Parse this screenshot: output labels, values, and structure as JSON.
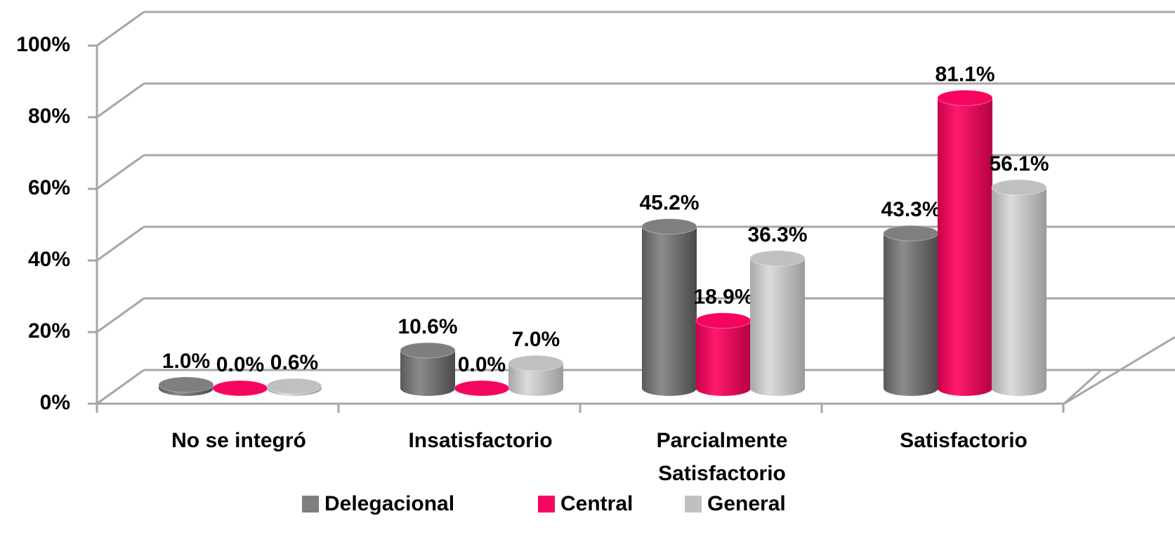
{
  "chart_data": {
    "type": "bar3d",
    "categories": [
      "No se integró",
      "Insatisfactorio",
      "Parcialmente Satisfactorio",
      "Satisfactorio"
    ],
    "series": [
      {
        "name": "Delegacional",
        "color": "#7f7f7f",
        "values": [
          1.0,
          10.6,
          45.2,
          43.3
        ],
        "value_labels": [
          "1.0%",
          "10.6%",
          "45.2%",
          "43.3%"
        ]
      },
      {
        "name": "Central",
        "color": "#f5055f",
        "values": [
          0.0,
          0.0,
          18.9,
          81.1
        ],
        "value_labels": [
          "0.0%",
          "0.0%",
          "18.9%",
          "81.1%"
        ]
      },
      {
        "name": "General",
        "color": "#c0c0c0",
        "values": [
          0.6,
          7.0,
          36.3,
          56.1
        ],
        "value_labels": [
          "0.6%",
          "7.0%",
          "36.3%",
          "56.1%"
        ]
      }
    ],
    "ylim": [
      0,
      100
    ],
    "yticks": [
      {
        "value": 0,
        "label": "0%"
      },
      {
        "value": 20,
        "label": "20%"
      },
      {
        "value": 40,
        "label": "40%"
      },
      {
        "value": 60,
        "label": "60%"
      },
      {
        "value": 80,
        "label": "80%"
      },
      {
        "value": 100,
        "label": "100%"
      }
    ],
    "grid": true,
    "legend": "bottom"
  }
}
